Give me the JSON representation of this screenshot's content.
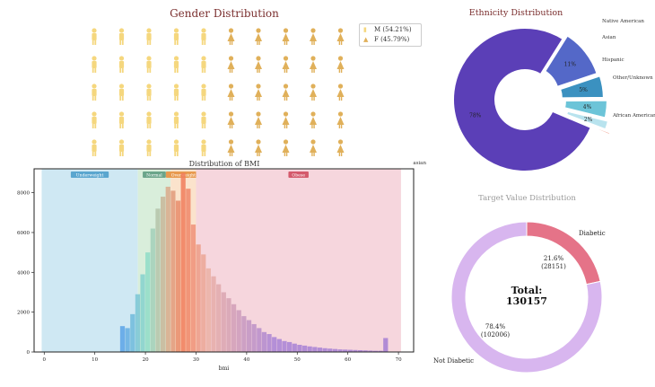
{
  "gender": {
    "title": "Gender Distribution",
    "legend": [
      {
        "label": "M (54.21%)",
        "color": "#f5d77e"
      },
      {
        "label": "F (45.79%)",
        "color": "#e0b05a"
      }
    ],
    "male_pct": 54.21,
    "female_pct": 45.79,
    "grid_rows": 5,
    "grid_cols": 10
  },
  "chart_data": [
    {
      "type": "pie",
      "title": "Ethnicity Distribution",
      "labels": [
        "Caucasian",
        "African American",
        "Other/Unknown",
        "Hispanic",
        "Asian",
        "Native American"
      ],
      "values": [
        78,
        11,
        5,
        4,
        2,
        0.5
      ],
      "pct_labels": [
        "78%",
        "11%",
        "5%",
        "4%",
        "2%",
        ""
      ],
      "colors": [
        "#5b3fb7",
        "#5468c8",
        "#3b91c0",
        "#6cc4d8",
        "#b8e3ee",
        "#e8735a"
      ],
      "style": "donut, exploded"
    },
    {
      "type": "bar",
      "title": "Distribution of BMI",
      "xlabel": "bmi",
      "ylabel": "",
      "xlim": [
        -2,
        73
      ],
      "ylim": [
        0,
        9200
      ],
      "xticks": [
        0,
        10,
        20,
        30,
        40,
        50,
        60,
        70
      ],
      "yticks": [
        0,
        2000,
        4000,
        6000,
        8000
      ],
      "bin_width": 1,
      "x": [
        15,
        16,
        17,
        18,
        19,
        20,
        21,
        22,
        23,
        24,
        25,
        26,
        27,
        28,
        29,
        30,
        31,
        32,
        33,
        34,
        35,
        36,
        37,
        38,
        39,
        40,
        41,
        42,
        43,
        44,
        45,
        46,
        47,
        48,
        49,
        50,
        51,
        52,
        53,
        54,
        55,
        56,
        57,
        58,
        59,
        60,
        61,
        62,
        63,
        64,
        65,
        66,
        67
      ],
      "values": [
        1300,
        1200,
        1900,
        2900,
        3900,
        5000,
        6200,
        7200,
        7800,
        8300,
        8100,
        7600,
        9000,
        8200,
        6400,
        5400,
        4900,
        4200,
        3800,
        3400,
        3000,
        2700,
        2400,
        2100,
        1800,
        1600,
        1400,
        1200,
        1000,
        900,
        750,
        650,
        550,
        500,
        420,
        360,
        320,
        280,
        250,
        220,
        190,
        170,
        150,
        130,
        120,
        110,
        100,
        90,
        80,
        70,
        60,
        60,
        700
      ],
      "regions": [
        {
          "label": "Underweight",
          "from": -0.5,
          "to": 18.5,
          "color": "#cfe8f3",
          "tag_color": "#5aa6cf"
        },
        {
          "label": "Normal",
          "from": 18.5,
          "to": 25,
          "color": "#d9eedb",
          "tag_color": "#6ba58a"
        },
        {
          "label": "Overweight",
          "from": 25,
          "to": 30,
          "color": "#fbe3cc",
          "tag_color": "#e89a4f"
        },
        {
          "label": "Obese",
          "from": 30,
          "to": 70.5,
          "color": "#f6d6dd",
          "tag_color": "#d45a6c"
        }
      ]
    },
    {
      "type": "pie",
      "title": "Target Value Distribution",
      "labels": [
        "Diabetic",
        "Not Diabetic"
      ],
      "values": [
        28151,
        102006
      ],
      "pct_labels": [
        "21.6%",
        "78.4%"
      ],
      "count_labels": [
        "(28151)",
        "(102006)"
      ],
      "colors": [
        "#e57388",
        "#d8b6ef"
      ],
      "center_label": "Total:",
      "center_value": "130157",
      "style": "donut"
    }
  ]
}
